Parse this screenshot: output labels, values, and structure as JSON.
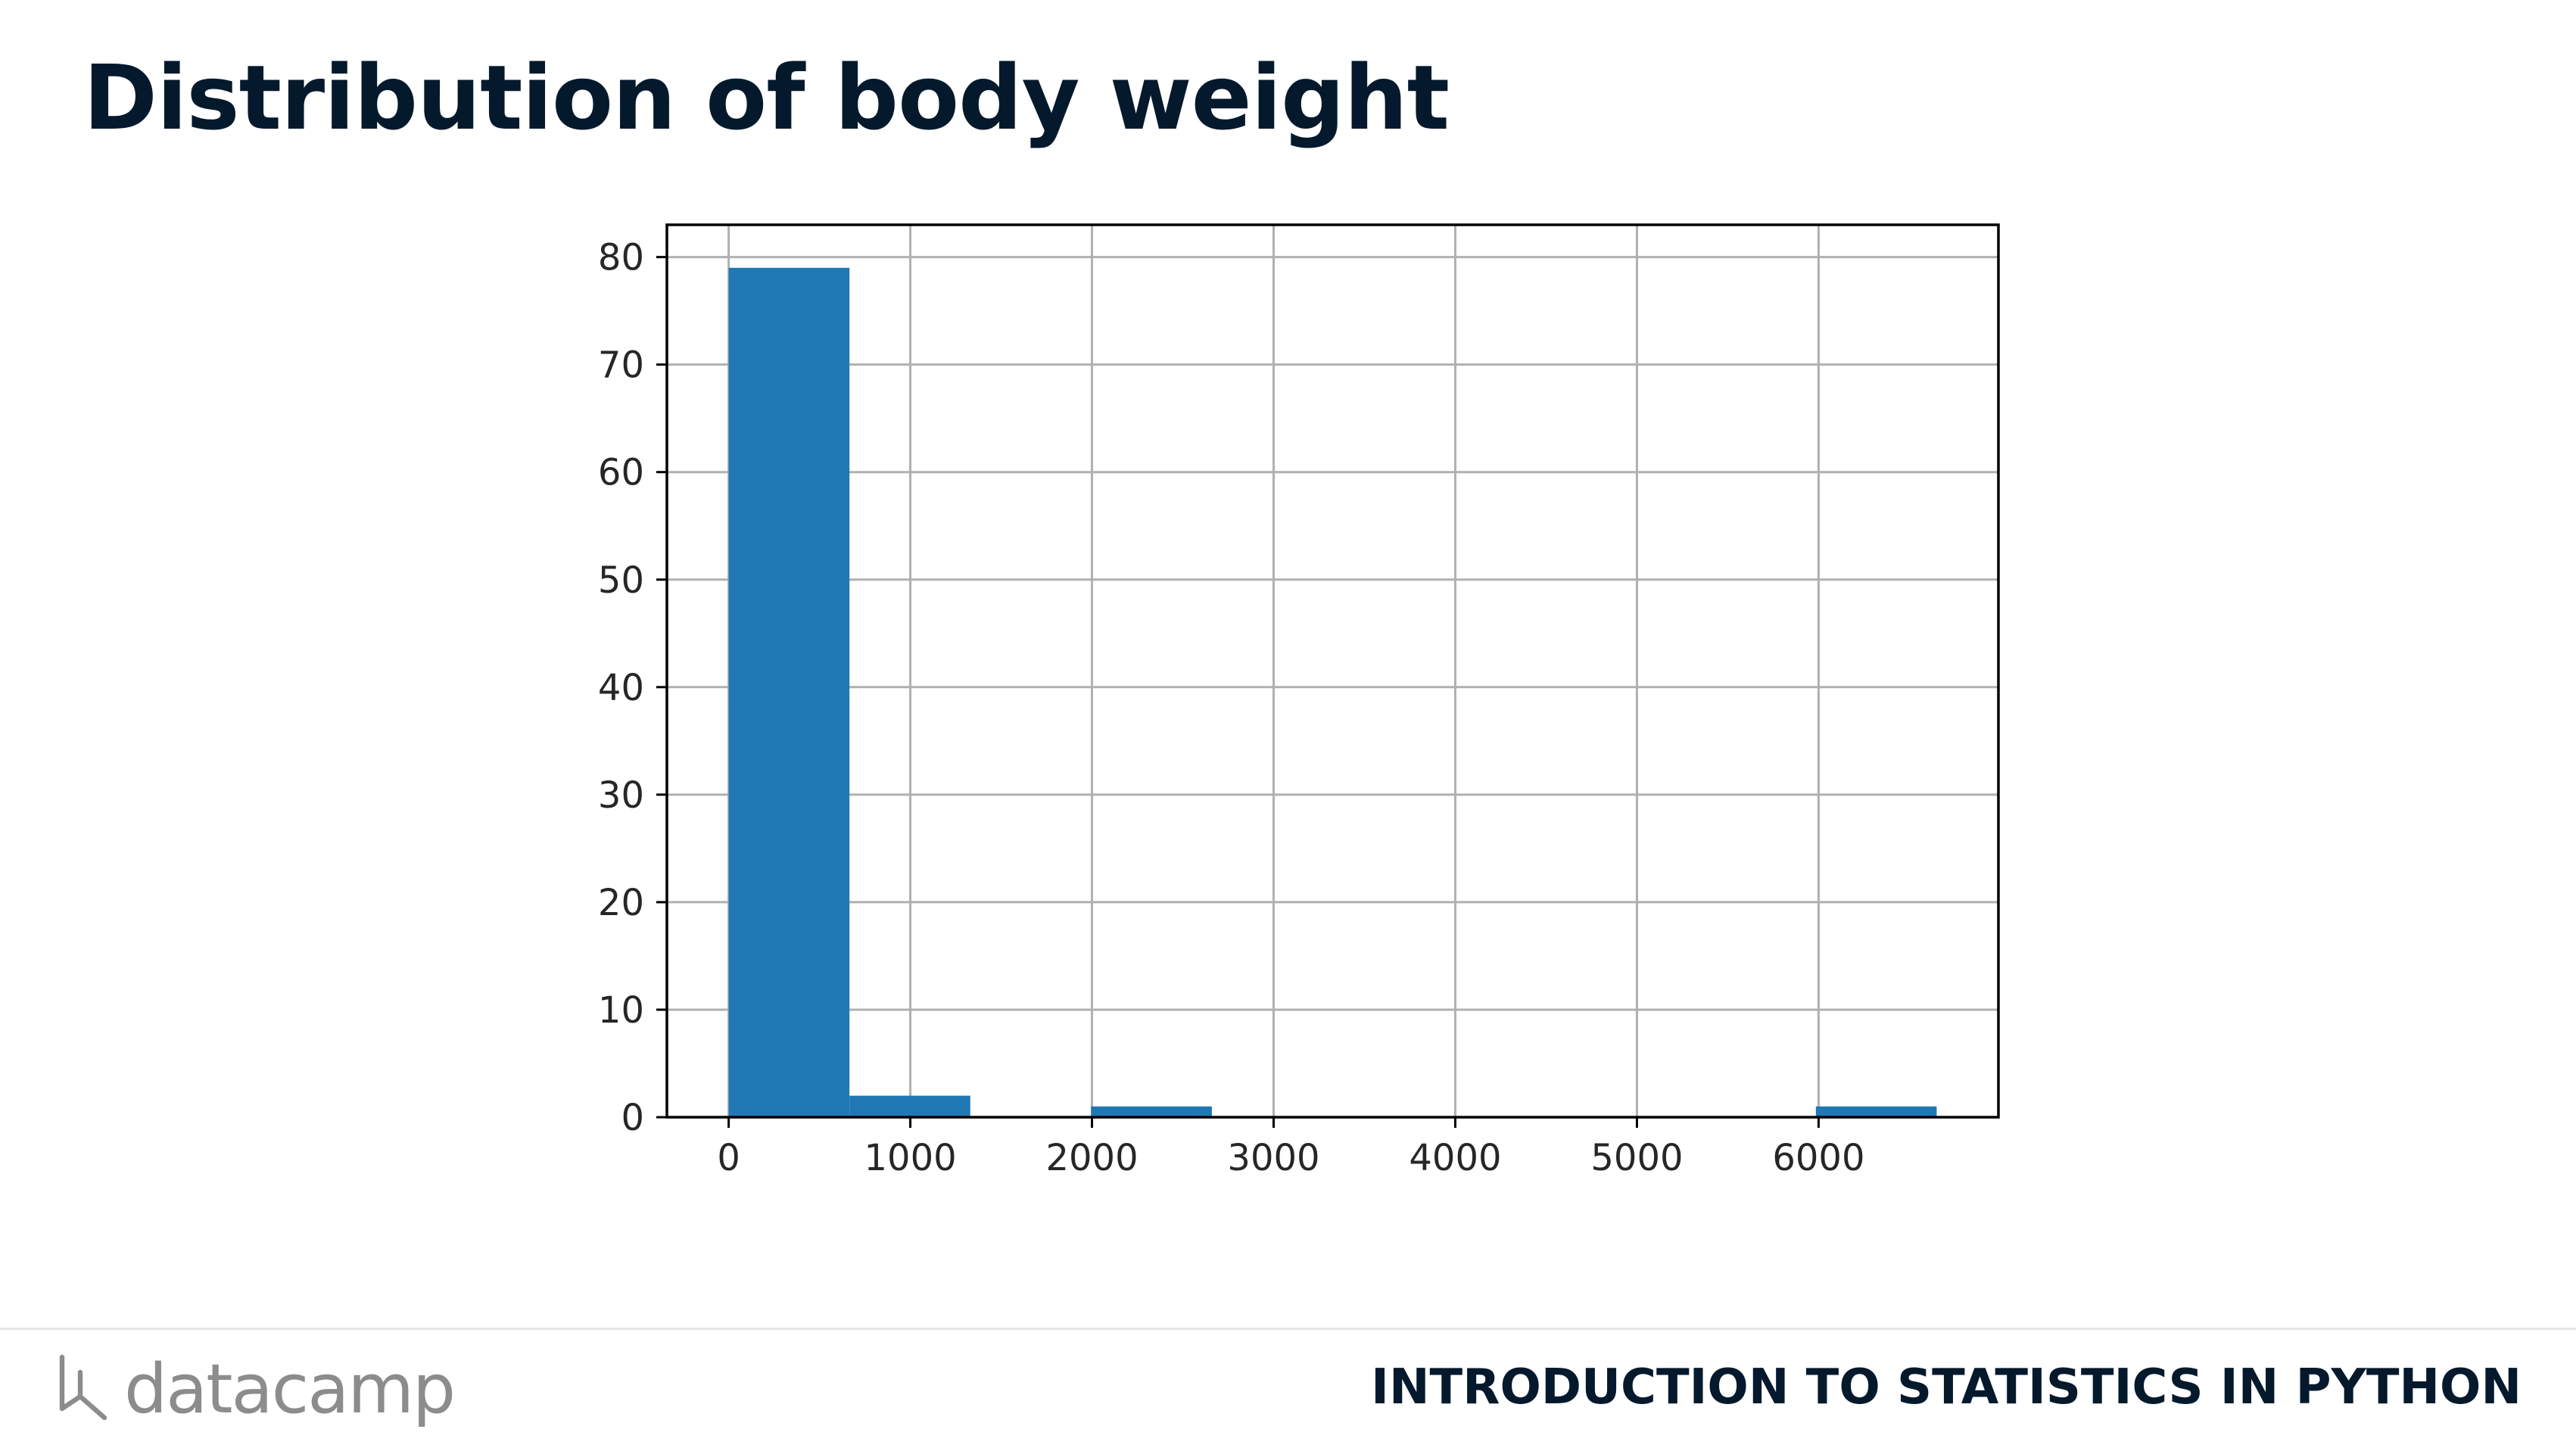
{
  "slide": {
    "title": "Distribution of body weight",
    "course": "INTRODUCTION TO STATISTICS IN PYTHON",
    "brand": "datacamp"
  },
  "colors": {
    "bar": "#1f77b4",
    "grid": "#b0b0b0",
    "title": "#05192d",
    "brand": "#8c8c8c"
  },
  "chart_data": {
    "type": "bar",
    "title": "",
    "xlabel": "",
    "ylabel": "",
    "grid": true,
    "xlim": [
      -340,
      6990
    ],
    "ylim": [
      0,
      83
    ],
    "xticks": [
      0,
      1000,
      2000,
      3000,
      4000,
      5000,
      6000
    ],
    "yticks": [
      0,
      10,
      20,
      30,
      40,
      50,
      60,
      70,
      80
    ],
    "bins": [
      {
        "x0": 0,
        "x1": 665,
        "value": 79
      },
      {
        "x0": 665,
        "x1": 1330,
        "value": 2
      },
      {
        "x0": 1330,
        "x1": 1995,
        "value": 0
      },
      {
        "x0": 1995,
        "x1": 2660,
        "value": 1
      },
      {
        "x0": 2660,
        "x1": 3325,
        "value": 0
      },
      {
        "x0": 3325,
        "x1": 3990,
        "value": 0
      },
      {
        "x0": 3990,
        "x1": 4655,
        "value": 0
      },
      {
        "x0": 4655,
        "x1": 5320,
        "value": 0
      },
      {
        "x0": 5320,
        "x1": 5985,
        "value": 0
      },
      {
        "x0": 5985,
        "x1": 6650,
        "value": 1
      }
    ]
  }
}
